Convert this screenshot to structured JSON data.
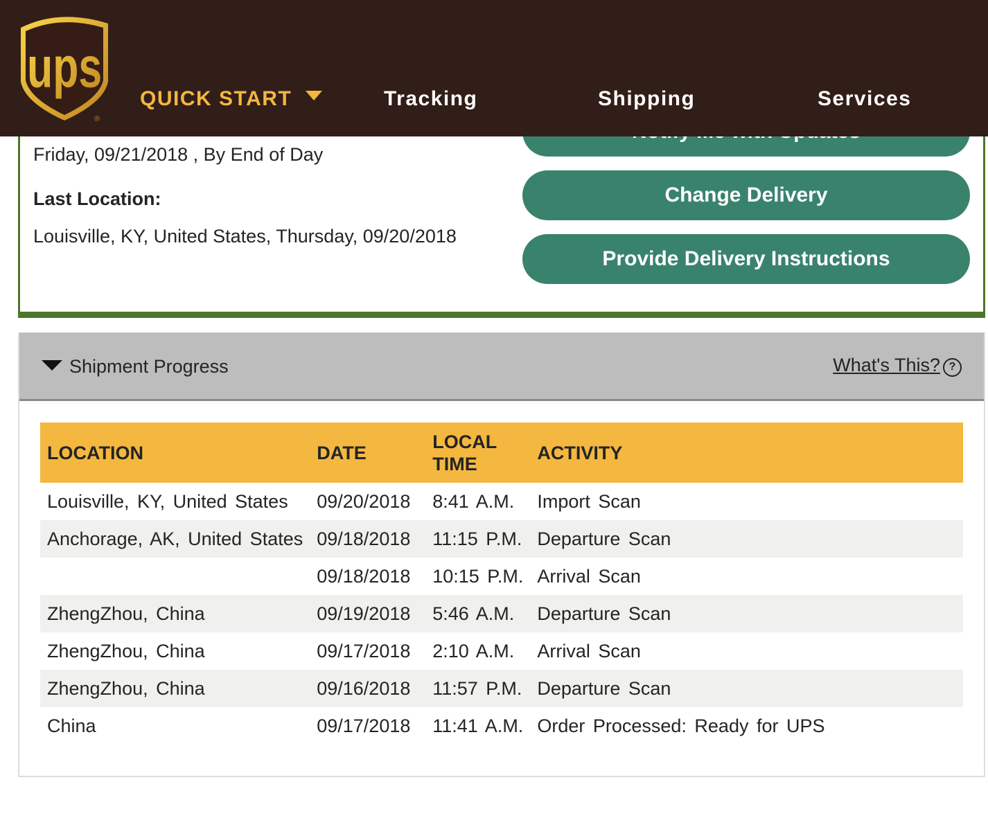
{
  "header": {
    "logo": "UPS",
    "nav": [
      {
        "label": "QUICK START"
      },
      {
        "label": "Tracking"
      },
      {
        "label": "Shipping"
      },
      {
        "label": "Services"
      }
    ]
  },
  "summary": {
    "delivery_date": "Friday, 09/21/2018 , By End of Day",
    "last_location_label": "Last Location:",
    "last_location": "Louisville, KY, United States, Thursday, 09/20/2018"
  },
  "actions": {
    "notify": "Notify Me with Updates",
    "change": "Change Delivery",
    "instructions": "Provide Delivery Instructions"
  },
  "progress": {
    "title": "Shipment Progress",
    "whats_this": "What's This?",
    "columns": [
      "LOCATION",
      "DATE",
      "LOCAL TIME",
      "ACTIVITY"
    ],
    "rows": [
      [
        "Louisville, KY, United States",
        "09/20/2018",
        "8:41 A.M.",
        "Import Scan"
      ],
      [
        "Anchorage, AK, United States",
        "09/18/2018",
        "11:15 P.M.",
        "Departure Scan"
      ],
      [
        "",
        "09/18/2018",
        "10:15 P.M.",
        "Arrival Scan"
      ],
      [
        "ZhengZhou, China",
        "09/19/2018",
        "5:46 A.M.",
        "Departure Scan"
      ],
      [
        "ZhengZhou, China",
        "09/17/2018",
        "2:10 A.M.",
        "Arrival Scan"
      ],
      [
        "ZhengZhou, China",
        "09/16/2018",
        "11:57 P.M.",
        "Departure Scan"
      ],
      [
        "China",
        "09/17/2018",
        "11:41 A.M.",
        "Order Processed: Ready for UPS"
      ]
    ]
  },
  "colors": {
    "header": "#321e18",
    "gold": "#f4b73f",
    "button": "#39836d",
    "border": "#4a7729"
  }
}
